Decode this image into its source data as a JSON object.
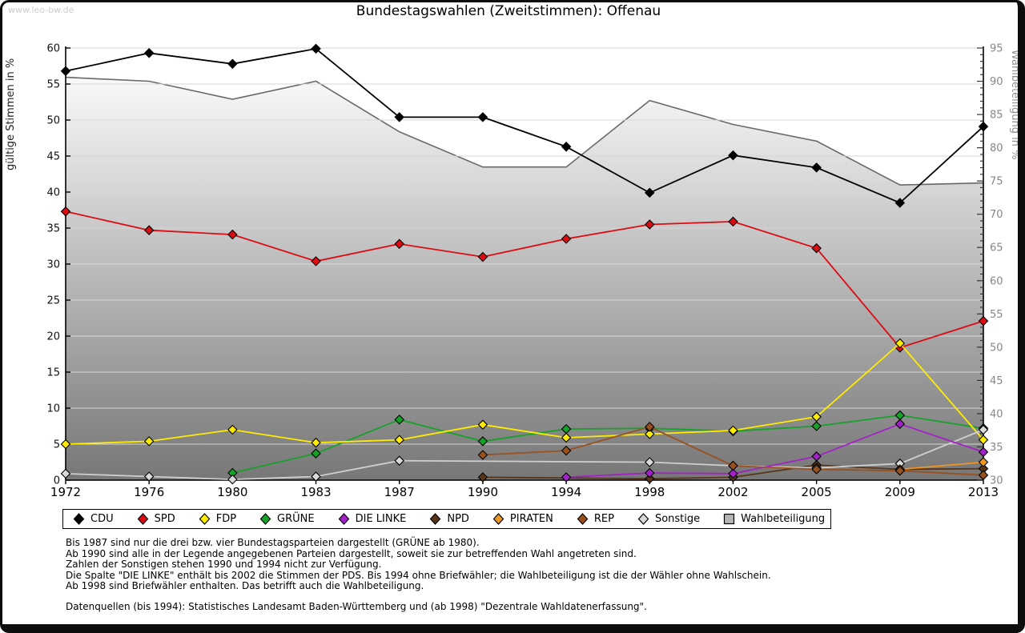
{
  "watermark": "www.leo-bw.de",
  "title": "Bundestagswahlen (Zweitstimmen): Offenau",
  "chart_data": {
    "type": "line",
    "title": "Bundestagswahlen (Zweitstimmen): Offenau",
    "x_categories": [
      "1972",
      "1976",
      "1980",
      "1983",
      "1987",
      "1990",
      "1994",
      "1998",
      "2002",
      "2005",
      "2009",
      "2013"
    ],
    "y_left_axis": {
      "label": "gültige Stimmen in %",
      "min": 0,
      "max": 60,
      "tick_step": 5
    },
    "y_right_axis": {
      "label": "Wahlbeteiligung in %",
      "min": 30,
      "max": 95,
      "tick_step": 5,
      "minor_step": 1
    },
    "grid": true,
    "legend_position": "bottom",
    "series": [
      {
        "name": "Wahlbeteiligung",
        "axis": "right",
        "style": "area",
        "color": "#6e6e6e",
        "values": [
          90.6,
          90.0,
          87.3,
          90.0,
          82.4,
          77.1,
          77.1,
          87.1,
          83.5,
          81.0,
          74.4,
          74.7
        ]
      },
      {
        "name": "CDU",
        "axis": "left",
        "style": "line",
        "color": "#000000",
        "values": [
          56.8,
          59.3,
          57.8,
          59.9,
          50.4,
          50.4,
          46.3,
          39.9,
          45.1,
          43.4,
          38.5,
          49.1
        ]
      },
      {
        "name": "SPD",
        "axis": "left",
        "style": "line",
        "color": "#dd0b12",
        "values": [
          37.3,
          34.7,
          34.1,
          30.4,
          32.8,
          31.0,
          33.5,
          35.5,
          35.9,
          32.2,
          18.4,
          22.1
        ]
      },
      {
        "name": "GRÜNE",
        "axis": "left",
        "style": "line",
        "color": "#16a129",
        "values": [
          null,
          null,
          1.0,
          3.7,
          8.4,
          5.4,
          7.1,
          7.2,
          6.8,
          7.5,
          9.0,
          7.2
        ]
      },
      {
        "name": "FDP",
        "axis": "left",
        "style": "line",
        "color": "#ffec00",
        "values": [
          5.0,
          5.4,
          7.0,
          5.2,
          5.6,
          7.7,
          5.9,
          6.4,
          6.9,
          8.8,
          19.0,
          5.6
        ]
      },
      {
        "name": "NPD",
        "axis": "left",
        "style": "line",
        "color": "#583418",
        "values": [
          null,
          null,
          null,
          null,
          null,
          0.4,
          null,
          0.2,
          0.4,
          2.1,
          1.5,
          1.6
        ]
      },
      {
        "name": "Sonstige",
        "axis": "left",
        "style": "line",
        "color": "#cfcfcf",
        "values": [
          0.9,
          0.5,
          0.1,
          0.5,
          2.7,
          null,
          null,
          2.5,
          2.0,
          1.7,
          2.3,
          7.0
        ]
      },
      {
        "name": "DIE LINKE",
        "axis": "left",
        "style": "line",
        "color": "#a322c8",
        "values": [
          null,
          null,
          null,
          null,
          null,
          null,
          0.4,
          1.0,
          0.9,
          3.3,
          7.8,
          3.9
        ]
      },
      {
        "name": "PIRATEN",
        "axis": "left",
        "style": "line",
        "color": "#ef9623",
        "values": [
          null,
          null,
          null,
          null,
          null,
          null,
          null,
          null,
          null,
          null,
          1.5,
          2.5
        ]
      },
      {
        "name": "REP",
        "axis": "left",
        "style": "line",
        "color": "#99511f",
        "values": [
          null,
          null,
          null,
          null,
          null,
          3.5,
          4.1,
          7.4,
          2.0,
          1.5,
          1.3,
          0.7
        ]
      }
    ]
  },
  "legend": {
    "items": [
      {
        "label": "CDU",
        "color": "#000000",
        "shape": "diamond"
      },
      {
        "label": "SPD",
        "color": "#dd0b12",
        "shape": "diamond"
      },
      {
        "label": "FDP",
        "color": "#ffec00",
        "shape": "diamond"
      },
      {
        "label": "GRÜNE",
        "color": "#16a129",
        "shape": "diamond"
      },
      {
        "label": "DIE LINKE",
        "color": "#a322c8",
        "shape": "diamond"
      },
      {
        "label": "NPD",
        "color": "#583418",
        "shape": "diamond"
      },
      {
        "label": "PIRATEN",
        "color": "#ef9623",
        "shape": "diamond"
      },
      {
        "label": "REP",
        "color": "#99511f",
        "shape": "diamond"
      },
      {
        "label": "Sonstige",
        "color": "#d9d9d9",
        "shape": "diamond"
      },
      {
        "label": "Wahlbeteiligung",
        "color": "#aaaaaa",
        "shape": "square"
      }
    ]
  },
  "footnotes": [
    "Bis 1987 sind nur die drei bzw. vier Bundestagsparteien dargestellt (GRÜNE ab 1980).",
    "Ab 1990 sind alle in der Legende angegebenen Parteien dargestellt, soweit sie zur betreffenden Wahl angetreten sind.",
    "Zahlen der Sonstigen stehen 1990 und 1994 nicht zur Verfügung.",
    "Die Spalte \"DIE LINKE\" enthält bis 2002 die Stimmen der PDS. Bis 1994 ohne Briefwähler; die Wahlbeteiligung ist die der Wähler ohne Wahlschein.",
    "Ab 1998 sind Briefwähler enthalten. Das betrifft auch die Wahlbeteiligung."
  ],
  "source_line": "Datenquellen (bis 1994): Statistisches Landesamt Baden-Württemberg und (ab 1998) \"Dezentrale Wahldatenerfassung\"."
}
